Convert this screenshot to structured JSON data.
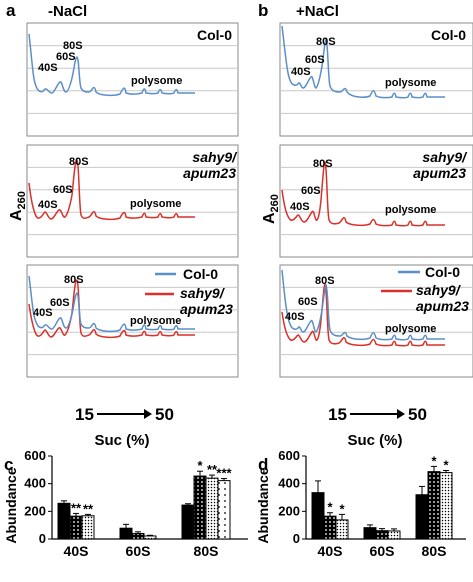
{
  "panels": {
    "a": {
      "letter": "a",
      "condition": "-NaCl"
    },
    "b": {
      "letter": "b",
      "condition": "+NaCl"
    },
    "c": {
      "letter": "c"
    },
    "d": {
      "letter": "d"
    }
  },
  "profiles": {
    "ylabel_main": "A",
    "ylabel_sub": "260",
    "gradient_start": "15",
    "gradient_end": "50",
    "xlabel": "Suc (%)",
    "peak_labels": {
      "p40": "40S",
      "p60": "60S",
      "p80": "80S",
      "poly": "polysome"
    },
    "genotypes": {
      "wt": "Col-0",
      "mut_line1": "sahy9/",
      "mut_line2": "apum23"
    },
    "colors": {
      "wt": "#5b8fc7",
      "mutant": "#d9312b",
      "grid": "#bdbdbd"
    }
  },
  "chart_data": [
    {
      "panel": "c",
      "type": "bar",
      "ylabel": "Abundance",
      "ylim": [
        0,
        600
      ],
      "yticks": [
        "0",
        "200",
        "400",
        "600"
      ],
      "categories": [
        "40S",
        "60S",
        "80S"
      ],
      "series": [
        {
          "fill": "solid-black",
          "values": [
            258,
            78,
            245
          ],
          "errors": [
            18,
            28,
            10
          ],
          "stars": [
            "",
            "",
            ""
          ]
        },
        {
          "fill": "black-white-dots",
          "values": [
            165,
            40,
            455
          ],
          "errors": [
            20,
            12,
            35
          ],
          "stars": [
            "**",
            "",
            "*"
          ]
        },
        {
          "fill": "white-fine-dots",
          "values": [
            168,
            22,
            440
          ],
          "errors": [
            10,
            5,
            22
          ],
          "stars": [
            "**",
            "",
            "**"
          ]
        },
        {
          "fill": "white-sparse-dots",
          "values": [
            0,
            0,
            422
          ],
          "errors": [
            0,
            0,
            15
          ],
          "stars": [
            "",
            "",
            "***"
          ]
        }
      ]
    },
    {
      "panel": "d",
      "type": "bar",
      "ylabel": "Abundance",
      "ylim": [
        0,
        600
      ],
      "yticks": [
        "0",
        "200",
        "400",
        "600"
      ],
      "categories": [
        "40S",
        "60S",
        "80S"
      ],
      "series": [
        {
          "fill": "solid-black",
          "values": [
            335,
            82,
            320
          ],
          "errors": [
            85,
            20,
            60
          ],
          "stars": [
            "",
            "",
            ""
          ]
        },
        {
          "fill": "black-white-dots",
          "values": [
            165,
            60,
            487
          ],
          "errors": [
            25,
            15,
            38
          ],
          "stars": [
            "*",
            "",
            "*"
          ]
        },
        {
          "fill": "white-fine-dots",
          "values": [
            138,
            58,
            480
          ],
          "errors": [
            40,
            15,
            15
          ],
          "stars": [
            "*",
            "",
            "*"
          ]
        }
      ]
    }
  ]
}
